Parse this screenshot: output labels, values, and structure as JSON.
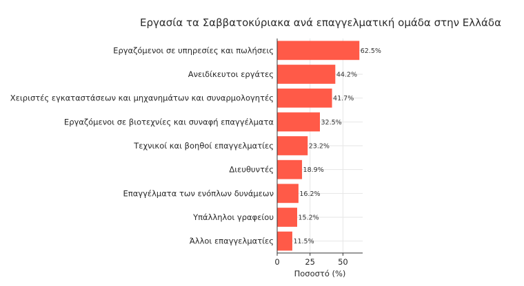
{
  "chart_data": {
    "type": "bar",
    "orientation": "horizontal",
    "title": "Εργασία τα Σαββατοκύριακα ανά επαγγελματική ομάδα στην Ελλάδα",
    "xlabel": "Ποσοστό (%)",
    "ylabel": "",
    "categories": [
      "Εργαζόμενοι σε υπηρεσίες και πωλήσεις",
      "Ανειδίκευτοι εργάτες",
      "Χειριστές εγκαταστάσεων και μηχανημάτων και συναρμολογητές",
      "Εργαζόμενοι σε βιοτεχνίες και συναφή επαγγέλματα",
      "Τεχνικοί και βοηθοί επαγγελματίες",
      "Διευθυντές",
      "Επαγγέλματα των ενόπλων δυνάμεων",
      "Υπάλληλοι γραφείου",
      "Άλλοι επαγγελματίες"
    ],
    "values": [
      62.5,
      44.2,
      41.7,
      32.5,
      23.2,
      18.9,
      16.2,
      15.2,
      11.5
    ],
    "value_labels": [
      "62.5%",
      "44.2%",
      "41.7%",
      "32.5%",
      "23.2%",
      "18.9%",
      "16.2%",
      "15.2%",
      "11.5%"
    ],
    "xlim": [
      0,
      65
    ],
    "xticks": [
      0,
      25,
      50
    ],
    "xtick_labels": [
      "0",
      "25",
      "50"
    ],
    "grid": true,
    "bar_color": "#ff5a48"
  }
}
